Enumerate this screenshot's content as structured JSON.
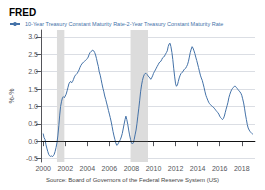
{
  "chart_data": {
    "type": "line",
    "title": "FRED",
    "x": [
      2000.0,
      2000.08,
      2000.17,
      2000.25,
      2000.33,
      2000.42,
      2000.5,
      2000.58,
      2000.67,
      2000.75,
      2000.83,
      2000.92,
      2001.0,
      2001.08,
      2001.17,
      2001.25,
      2001.33,
      2001.42,
      2001.5,
      2001.58,
      2001.67,
      2001.75,
      2001.83,
      2001.92,
      2002.0,
      2002.08,
      2002.17,
      2002.25,
      2002.33,
      2002.42,
      2002.5,
      2002.58,
      2002.67,
      2002.75,
      2002.83,
      2002.92,
      2003.0,
      2003.08,
      2003.17,
      2003.25,
      2003.33,
      2003.42,
      2003.5,
      2003.58,
      2003.67,
      2003.75,
      2003.83,
      2003.92,
      2004.0,
      2004.08,
      2004.17,
      2004.25,
      2004.33,
      2004.42,
      2004.5,
      2004.58,
      2004.67,
      2004.75,
      2004.83,
      2004.92,
      2005.0,
      2005.08,
      2005.17,
      2005.25,
      2005.33,
      2005.42,
      2005.5,
      2005.58,
      2005.67,
      2005.75,
      2005.83,
      2005.92,
      2006.0,
      2006.08,
      2006.17,
      2006.25,
      2006.33,
      2006.42,
      2006.5,
      2006.58,
      2006.67,
      2006.75,
      2006.83,
      2006.92,
      2007.0,
      2007.08,
      2007.17,
      2007.25,
      2007.33,
      2007.42,
      2007.5,
      2007.58,
      2007.67,
      2007.75,
      2007.83,
      2007.92,
      2008.0,
      2008.08,
      2008.17,
      2008.25,
      2008.33,
      2008.42,
      2008.5,
      2008.58,
      2008.67,
      2008.75,
      2008.83,
      2008.92,
      2009.0,
      2009.08,
      2009.17,
      2009.25,
      2009.33,
      2009.42,
      2009.5,
      2009.58,
      2009.67,
      2009.75,
      2009.83,
      2009.92,
      2010.0,
      2010.08,
      2010.17,
      2010.25,
      2010.33,
      2010.42,
      2010.5,
      2010.58,
      2010.67,
      2010.75,
      2010.83,
      2010.92,
      2011.0,
      2011.08,
      2011.17,
      2011.25,
      2011.33,
      2011.42,
      2011.5,
      2011.58,
      2011.67,
      2011.75,
      2011.83,
      2011.92,
      2012.0,
      2012.08,
      2012.17,
      2012.25,
      2012.33,
      2012.42,
      2012.5,
      2012.58,
      2012.67,
      2012.75,
      2012.83,
      2012.92,
      2013.0,
      2013.08,
      2013.17,
      2013.25,
      2013.33,
      2013.42,
      2013.5,
      2013.58,
      2013.67,
      2013.75,
      2013.83,
      2013.92,
      2014.0,
      2014.08,
      2014.17,
      2014.25,
      2014.33,
      2014.42,
      2014.5,
      2014.58,
      2014.67,
      2014.75,
      2014.83,
      2014.92,
      2015.0,
      2015.08,
      2015.17,
      2015.25,
      2015.33,
      2015.42,
      2015.5,
      2015.58,
      2015.67,
      2015.75,
      2015.83,
      2015.92,
      2016.0,
      2016.08,
      2016.17,
      2016.25,
      2016.33,
      2016.42,
      2016.5,
      2016.58,
      2016.67,
      2016.75,
      2016.83,
      2016.92,
      2017.0,
      2017.08,
      2017.17,
      2017.25,
      2017.33,
      2017.42,
      2017.5,
      2017.58,
      2017.67,
      2017.75,
      2017.83,
      2017.92,
      2018.0,
      2018.08,
      2018.17,
      2018.25,
      2018.33,
      2018.42,
      2018.5,
      2018.58,
      2018.67,
      2018.75,
      2018.83,
      2018.92,
      2019.0
    ],
    "series": [
      {
        "name": "10-Year Treasury Constant Maturity Rate-2-Year Treasury Constant Maturity Rate",
        "color": "#4472a8",
        "values": [
          0.22,
          0.1,
          0.05,
          -0.1,
          -0.2,
          -0.3,
          -0.38,
          -0.42,
          -0.44,
          -0.42,
          -0.45,
          -0.42,
          -0.38,
          -0.3,
          -0.18,
          -0.05,
          0.15,
          0.45,
          0.75,
          1.0,
          1.15,
          1.25,
          1.28,
          1.25,
          1.3,
          1.35,
          1.45,
          1.55,
          1.65,
          1.7,
          1.72,
          1.68,
          1.72,
          1.78,
          1.85,
          1.9,
          1.92,
          1.95,
          2.0,
          2.05,
          2.12,
          2.18,
          2.22,
          2.25,
          2.28,
          2.3,
          2.32,
          2.35,
          2.38,
          2.42,
          2.5,
          2.55,
          2.58,
          2.6,
          2.62,
          2.6,
          2.55,
          2.48,
          2.38,
          2.25,
          2.15,
          2.0,
          1.9,
          1.78,
          1.65,
          1.52,
          1.42,
          1.3,
          1.2,
          1.1,
          1.0,
          0.88,
          0.78,
          0.68,
          0.55,
          0.42,
          0.28,
          0.15,
          0.05,
          -0.05,
          -0.12,
          -0.1,
          -0.05,
          0.0,
          0.05,
          0.12,
          0.22,
          0.35,
          0.48,
          0.62,
          0.72,
          0.62,
          0.48,
          0.32,
          0.18,
          0.05,
          -0.05,
          -0.08,
          -0.05,
          0.05,
          0.18,
          0.32,
          0.5,
          0.72,
          0.95,
          1.18,
          1.42,
          1.62,
          1.75,
          1.85,
          1.92,
          1.95,
          1.95,
          1.92,
          1.88,
          1.85,
          1.82,
          1.78,
          1.82,
          1.88,
          1.95,
          2.0,
          2.05,
          2.1,
          2.15,
          2.2,
          2.25,
          2.28,
          2.3,
          2.35,
          2.4,
          2.42,
          2.45,
          2.5,
          2.55,
          2.6,
          2.72,
          2.8,
          2.82,
          2.72,
          2.55,
          2.35,
          2.1,
          1.85,
          1.65,
          1.58,
          1.62,
          1.72,
          1.82,
          1.9,
          1.95,
          1.98,
          2.0,
          2.05,
          2.08,
          2.1,
          2.15,
          2.2,
          2.3,
          2.42,
          2.55,
          2.65,
          2.72,
          2.68,
          2.6,
          2.52,
          2.42,
          2.32,
          2.22,
          2.12,
          2.0,
          1.9,
          1.82,
          1.75,
          1.65,
          1.55,
          1.42,
          1.32,
          1.25,
          1.18,
          1.12,
          1.08,
          1.05,
          1.02,
          1.0,
          0.98,
          0.95,
          0.92,
          0.88,
          0.85,
          0.82,
          0.78,
          0.72,
          0.68,
          0.65,
          0.62,
          0.65,
          0.72,
          0.82,
          0.92,
          1.02,
          1.12,
          1.25,
          1.35,
          1.42,
          1.48,
          1.52,
          1.55,
          1.58,
          1.58,
          1.55,
          1.52,
          1.48,
          1.45,
          1.42,
          1.38,
          1.32,
          1.22,
          1.1,
          0.95,
          0.78,
          0.62,
          0.48,
          0.38,
          0.32,
          0.28,
          0.25,
          0.22,
          0.2
        ]
      }
    ],
    "ylabel": "%-%",
    "annotations": [
      "Source: Board of Governors of the Federal Reserve System (US)"
    ],
    "recessions": [
      [
        2001.25,
        2001.92
      ],
      [
        2007.92,
        2009.5
      ]
    ],
    "recession_color": "#dcdcdc",
    "hline": 0,
    "hline_color": "#000000",
    "xlim": [
      1999.8,
      2019.2
    ],
    "ylim": [
      -0.6,
      3.2
    ],
    "xticks": [
      2000,
      2002,
      2004,
      2006,
      2008,
      2010,
      2012,
      2014,
      2016,
      2018
    ],
    "yticks": [
      -0.5,
      {
        "value": 0.0,
        "label": "0.0"
      },
      0.5,
      {
        "value": 1.0,
        "label": "1.0"
      },
      1.5,
      {
        "value": 2.0,
        "label": "2.0"
      },
      2.5,
      {
        "value": 3.0,
        "label": "3.0"
      }
    ],
    "grid": true
  }
}
